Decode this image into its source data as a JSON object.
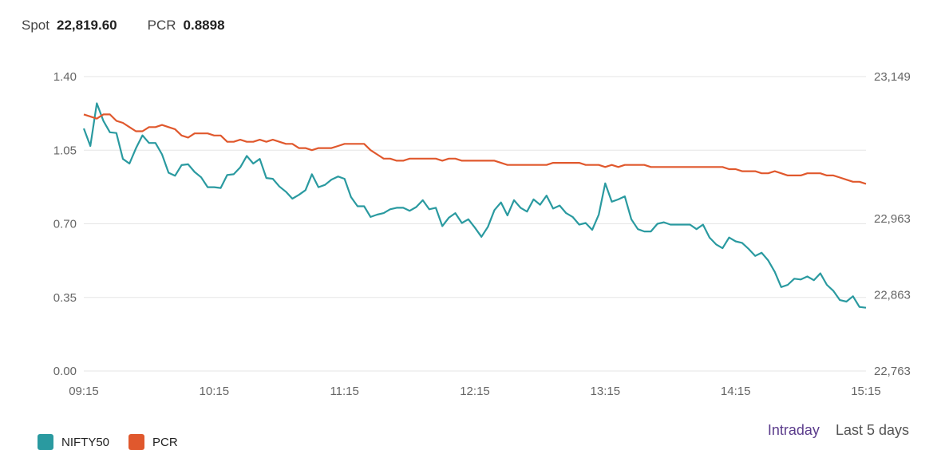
{
  "stats": {
    "spot_label": "Spot",
    "spot_value": "22,819.60",
    "pcr_label": "PCR",
    "pcr_value": "0.8898"
  },
  "range_tabs": [
    {
      "label": "Intraday",
      "active": true
    },
    {
      "label": "Last 5 days",
      "active": false
    }
  ],
  "colors": {
    "nifty": "#2a9aa0",
    "pcr": "#e0582d",
    "grid": "#e5e5e5",
    "axis_text": "#666666",
    "active_tab": "#5b3c8c"
  },
  "chart_data": {
    "type": "line",
    "x_ticks": [
      "09:15",
      "10:15",
      "11:15",
      "12:15",
      "13:15",
      "14:15",
      "15:15"
    ],
    "y_left": {
      "ticks": [
        "0.00",
        "0.35",
        "0.70",
        "1.05",
        "1.40"
      ],
      "min": 0,
      "max": 1.4
    },
    "y_right": {
      "ticks": [
        "22,763",
        "22,863",
        "22,963",
        "23,149"
      ],
      "tick_values": [
        22763,
        22863,
        22963,
        23149
      ],
      "min": 22763,
      "max": 23149
    },
    "series": [
      {
        "name": "NIFTY50",
        "axis": "right",
        "color": "#2a9aa0",
        "values": [
          23081,
          23058,
          23114,
          23091,
          23076,
          23075,
          23041,
          23035,
          23055,
          23072,
          23062,
          23062,
          23047,
          23023,
          23019,
          23033,
          23034,
          23024,
          23017,
          23004,
          23004,
          23003,
          23020,
          23021,
          23030,
          23045,
          23035,
          23041,
          23016,
          23015,
          23005,
          22998,
          22989,
          22994,
          23000,
          23021,
          23004,
          23007,
          23014,
          23018,
          23015,
          22991,
          22979,
          22979,
          22965,
          22968,
          22970,
          22975,
          22977,
          22977,
          22973,
          22978,
          22987,
          22975,
          22977,
          22953,
          22964,
          22970,
          22957,
          22962,
          22951,
          22939,
          22952,
          22974,
          22984,
          22967,
          22987,
          22977,
          22972,
          22988,
          22981,
          22993,
          22976,
          22980,
          22970,
          22965,
          22955,
          22957,
          22948,
          22968,
          23009,
          22985,
          22988,
          22992,
          22962,
          22949,
          22946,
          22946,
          22956,
          22958,
          22955,
          22955,
          22955,
          22955,
          22949,
          22955,
          22938,
          22929,
          22924,
          22938,
          22933,
          22931,
          22923,
          22914,
          22918,
          22908,
          22893,
          22873,
          22876,
          22884,
          22883,
          22887,
          22882,
          22891,
          22876,
          22868,
          22856,
          22854,
          22861,
          22847,
          22846
        ]
      },
      {
        "name": "PCR",
        "axis": "left",
        "color": "#e0582d",
        "values": [
          1.22,
          1.21,
          1.2,
          1.22,
          1.22,
          1.19,
          1.18,
          1.16,
          1.14,
          1.14,
          1.16,
          1.16,
          1.17,
          1.16,
          1.15,
          1.12,
          1.11,
          1.13,
          1.13,
          1.13,
          1.12,
          1.12,
          1.09,
          1.09,
          1.1,
          1.09,
          1.09,
          1.1,
          1.09,
          1.1,
          1.09,
          1.08,
          1.08,
          1.06,
          1.06,
          1.05,
          1.06,
          1.06,
          1.06,
          1.07,
          1.08,
          1.08,
          1.08,
          1.08,
          1.05,
          1.03,
          1.01,
          1.01,
          1.0,
          1.0,
          1.01,
          1.01,
          1.01,
          1.01,
          1.01,
          1.0,
          1.01,
          1.01,
          1.0,
          1.0,
          1.0,
          1.0,
          1.0,
          1.0,
          0.99,
          0.98,
          0.98,
          0.98,
          0.98,
          0.98,
          0.98,
          0.98,
          0.99,
          0.99,
          0.99,
          0.99,
          0.99,
          0.98,
          0.98,
          0.98,
          0.97,
          0.98,
          0.97,
          0.98,
          0.98,
          0.98,
          0.98,
          0.97,
          0.97,
          0.97,
          0.97,
          0.97,
          0.97,
          0.97,
          0.97,
          0.97,
          0.97,
          0.97,
          0.97,
          0.96,
          0.96,
          0.95,
          0.95,
          0.95,
          0.94,
          0.94,
          0.95,
          0.94,
          0.93,
          0.93,
          0.93,
          0.94,
          0.94,
          0.94,
          0.93,
          0.93,
          0.92,
          0.91,
          0.9,
          0.9,
          0.89
        ]
      }
    ],
    "legend_position": "bottom-left",
    "grid": true
  }
}
